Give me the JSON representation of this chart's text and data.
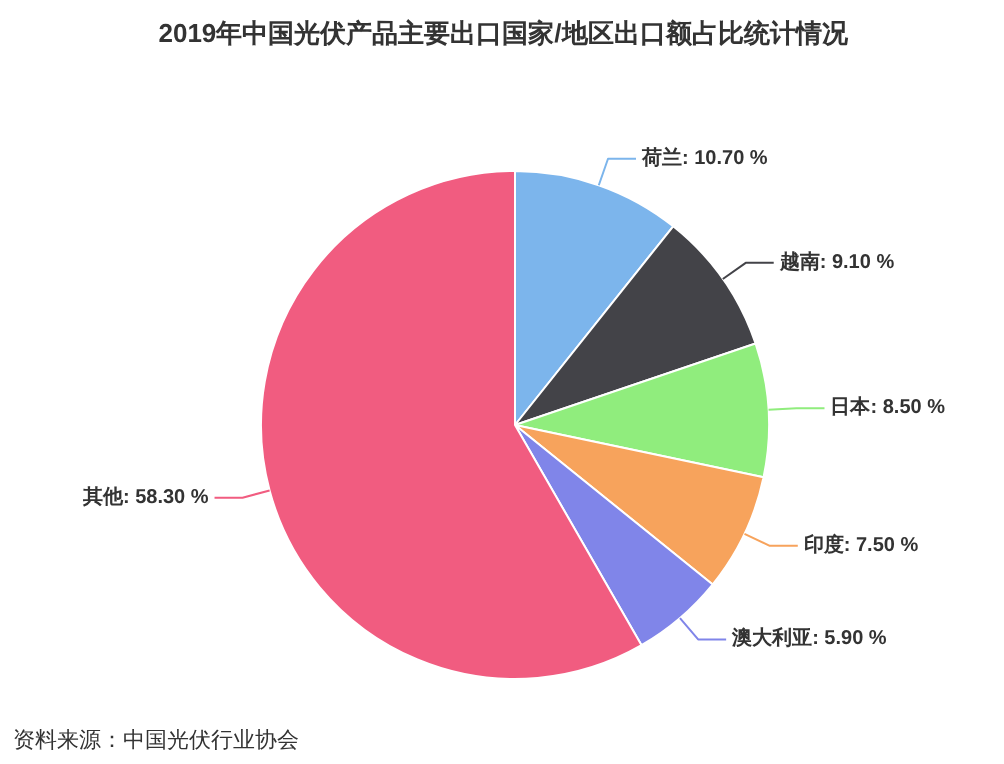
{
  "chart_data": {
    "type": "pie",
    "title": "2019年中国光伏产品主要出口国家/地区出口额占比统计情况",
    "categories": [
      "荷兰",
      "越南",
      "日本",
      "印度",
      "澳大利亚",
      "其他"
    ],
    "values": [
      10.7,
      9.1,
      8.5,
      7.5,
      5.9,
      58.3
    ],
    "value_labels": [
      "10.70 %",
      "9.10 %",
      "8.50 %",
      "7.50 %",
      "5.90 %",
      "58.30 %"
    ],
    "colors": [
      "#7cb5ec",
      "#434348",
      "#90ed7d",
      "#f7a35c",
      "#8085e9",
      "#f15c80"
    ],
    "annotations": [
      "资料来源：中国光伏行业协会"
    ]
  }
}
